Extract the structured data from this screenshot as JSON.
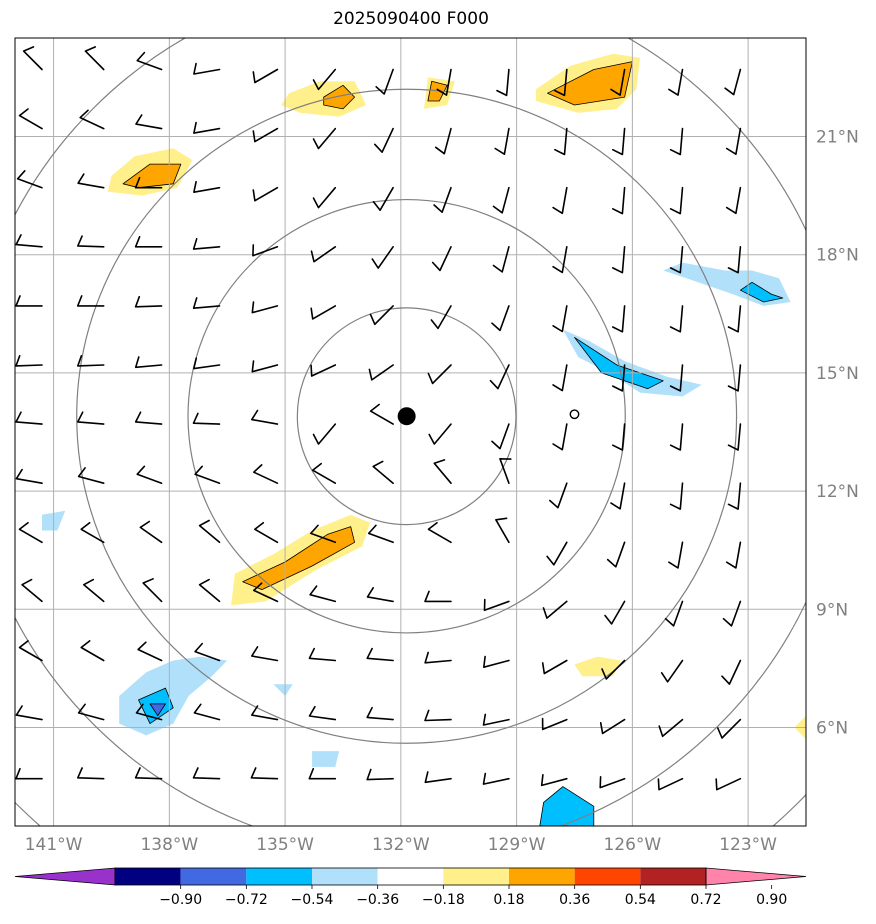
{
  "title": "2025090400 F000",
  "map": {
    "lon_range": [
      -142,
      -121.5
    ],
    "lat_range": [
      3.5,
      23.5
    ],
    "lon_ticks": [
      {
        "value": -141,
        "label": "141°W"
      },
      {
        "value": -138,
        "label": "138°W"
      },
      {
        "value": -135,
        "label": "135°W"
      },
      {
        "value": -132,
        "label": "132°W"
      },
      {
        "value": -129,
        "label": "129°W"
      },
      {
        "value": -126,
        "label": "126°W"
      },
      {
        "value": -123,
        "label": "123°W"
      }
    ],
    "lat_ticks": [
      {
        "value": 21,
        "label": "21°N"
      },
      {
        "value": 18,
        "label": "18°N"
      },
      {
        "value": 15,
        "label": "15°N"
      },
      {
        "value": 12,
        "label": "12°N"
      },
      {
        "value": 9,
        "label": "9°N"
      },
      {
        "value": 6,
        "label": "6°N"
      }
    ],
    "center": {
      "lon": -131.85,
      "lat": 13.9
    },
    "secondary_marker": {
      "lon": -127.5,
      "lat": 13.95
    },
    "range_rings_deg": [
      2.75,
      5.5,
      8.3,
      11.1,
      13.9
    ],
    "grid_color": "#b0b0b0",
    "ring_color": "#808080"
  },
  "colorbar": {
    "colors": [
      "#9932cc",
      "#000080",
      "#4169e1",
      "#00bfff",
      "#b0e0fa",
      "#ffffff",
      "#fff08c",
      "#ffa500",
      "#ff4500",
      "#b22222",
      "#ff83ab"
    ],
    "ticks": [
      "−0.90",
      "−0.72",
      "−0.54",
      "−0.36",
      "−0.18",
      "0.18",
      "0.36",
      "0.54",
      "0.72",
      "0.90"
    ]
  },
  "shaded_regions": [
    {
      "pts": [
        [
          -134.9,
          22.1
        ],
        [
          -134.1,
          22.4
        ],
        [
          -133.2,
          22.4
        ],
        [
          -132.9,
          21.8
        ],
        [
          -133.6,
          21.5
        ],
        [
          -134.6,
          21.6
        ],
        [
          -135.1,
          21.8
        ]
      ],
      "level": "pos1"
    },
    {
      "pts": [
        [
          -134.0,
          22.0
        ],
        [
          -133.5,
          22.3
        ],
        [
          -133.2,
          22.0
        ],
        [
          -133.5,
          21.7
        ],
        [
          -134.0,
          21.8
        ]
      ],
      "level": "pos2"
    },
    {
      "pts": [
        [
          -131.3,
          22.5
        ],
        [
          -130.6,
          22.4
        ],
        [
          -130.8,
          21.8
        ],
        [
          -131.4,
          21.7
        ]
      ],
      "level": "pos1"
    },
    {
      "pts": [
        [
          -131.2,
          22.4
        ],
        [
          -130.8,
          22.3
        ],
        [
          -131.0,
          21.9
        ],
        [
          -131.3,
          21.9
        ]
      ],
      "level": "pos2"
    },
    {
      "pts": [
        [
          -128.5,
          22.2
        ],
        [
          -127.6,
          22.8
        ],
        [
          -126.5,
          23.1
        ],
        [
          -125.8,
          23.0
        ],
        [
          -125.9,
          22.2
        ],
        [
          -126.4,
          21.7
        ],
        [
          -127.4,
          21.6
        ],
        [
          -128.5,
          21.9
        ]
      ],
      "level": "pos1"
    },
    {
      "pts": [
        [
          -128.2,
          22.1
        ],
        [
          -127.0,
          22.7
        ],
        [
          -126.0,
          22.9
        ],
        [
          -126.2,
          22.0
        ],
        [
          -127.5,
          21.8
        ]
      ],
      "level": "pos2"
    },
    {
      "pts": [
        [
          -139.5,
          20.0
        ],
        [
          -138.9,
          20.5
        ],
        [
          -137.9,
          20.7
        ],
        [
          -137.4,
          20.4
        ],
        [
          -137.8,
          19.7
        ],
        [
          -138.7,
          19.5
        ],
        [
          -139.6,
          19.6
        ]
      ],
      "level": "pos1"
    },
    {
      "pts": [
        [
          -139.2,
          19.8
        ],
        [
          -138.5,
          20.3
        ],
        [
          -137.7,
          20.3
        ],
        [
          -137.9,
          19.8
        ],
        [
          -138.8,
          19.7
        ]
      ],
      "level": "pos2"
    },
    {
      "pts": [
        [
          -136.3,
          9.9
        ],
        [
          -135.3,
          10.4
        ],
        [
          -134.3,
          11.0
        ],
        [
          -133.3,
          11.4
        ],
        [
          -132.8,
          11.2
        ],
        [
          -133.0,
          10.6
        ],
        [
          -134.2,
          10.0
        ],
        [
          -135.5,
          9.2
        ],
        [
          -136.4,
          9.1
        ]
      ],
      "level": "pos1"
    },
    {
      "pts": [
        [
          -136.1,
          9.7
        ],
        [
          -135.0,
          10.2
        ],
        [
          -133.9,
          10.9
        ],
        [
          -133.3,
          11.1
        ],
        [
          -133.2,
          10.7
        ],
        [
          -134.3,
          10.1
        ],
        [
          -135.6,
          9.5
        ]
      ],
      "level": "pos2"
    },
    {
      "pts": [
        [
          -127.5,
          7.6
        ],
        [
          -126.9,
          7.8
        ],
        [
          -126.3,
          7.7
        ],
        [
          -126.5,
          7.3
        ],
        [
          -127.3,
          7.3
        ]
      ],
      "level": "pos1"
    },
    {
      "pts": [
        [
          -121.8,
          6.0
        ],
        [
          -121.5,
          6.3
        ],
        [
          -121.5,
          5.7
        ]
      ],
      "level": "pos1"
    },
    {
      "pts": [
        [
          -125.2,
          17.6
        ],
        [
          -124.7,
          17.8
        ],
        [
          -123.6,
          17.6
        ],
        [
          -122.9,
          17.6
        ],
        [
          -122.2,
          17.4
        ],
        [
          -121.9,
          16.8
        ],
        [
          -122.6,
          16.7
        ],
        [
          -123.4,
          17.0
        ],
        [
          -124.6,
          17.4
        ]
      ],
      "level": "neg1"
    },
    {
      "pts": [
        [
          -122.9,
          17.3
        ],
        [
          -122.4,
          17.0
        ],
        [
          -122.1,
          16.9
        ],
        [
          -122.6,
          16.8
        ],
        [
          -123.2,
          17.1
        ]
      ],
      "level": "neg2"
    },
    {
      "pts": [
        [
          -127.8,
          16.1
        ],
        [
          -127.1,
          15.8
        ],
        [
          -126.2,
          15.3
        ],
        [
          -125.1,
          14.9
        ],
        [
          -124.2,
          14.7
        ],
        [
          -124.7,
          14.4
        ],
        [
          -125.8,
          14.5
        ],
        [
          -126.6,
          15.0
        ],
        [
          -127.4,
          15.4
        ]
      ],
      "level": "neg1"
    },
    {
      "pts": [
        [
          -127.5,
          15.9
        ],
        [
          -126.4,
          15.2
        ],
        [
          -125.2,
          14.8
        ],
        [
          -125.6,
          14.6
        ],
        [
          -126.8,
          15.0
        ]
      ],
      "level": "neg2"
    },
    {
      "pts": [
        [
          -141.3,
          11.4
        ],
        [
          -140.7,
          11.5
        ],
        [
          -140.9,
          11.0
        ],
        [
          -141.3,
          11.0
        ]
      ],
      "level": "neg1"
    },
    {
      "pts": [
        [
          -139.3,
          6.8
        ],
        [
          -138.6,
          7.4
        ],
        [
          -137.9,
          7.7
        ],
        [
          -137.2,
          7.8
        ],
        [
          -136.5,
          7.7
        ],
        [
          -136.9,
          7.3
        ],
        [
          -137.5,
          6.8
        ],
        [
          -137.9,
          6.1
        ],
        [
          -138.6,
          5.8
        ],
        [
          -139.3,
          6.1
        ]
      ],
      "level": "neg1"
    },
    {
      "pts": [
        [
          -138.8,
          6.7
        ],
        [
          -138.1,
          7.0
        ],
        [
          -137.9,
          6.5
        ],
        [
          -138.5,
          6.1
        ]
      ],
      "level": "neg2"
    },
    {
      "pts": [
        [
          -138.5,
          6.6
        ],
        [
          -138.1,
          6.6
        ],
        [
          -138.3,
          6.3
        ]
      ],
      "level": "neg3"
    },
    {
      "pts": [
        [
          -135.3,
          7.1
        ],
        [
          -134.8,
          7.1
        ],
        [
          -135.0,
          6.8
        ]
      ],
      "level": "neg1"
    },
    {
      "pts": [
        [
          -134.3,
          5.4
        ],
        [
          -133.6,
          5.4
        ],
        [
          -133.7,
          5.0
        ],
        [
          -134.3,
          5.0
        ]
      ],
      "level": "neg1"
    },
    {
      "pts": [
        [
          -128.3,
          4.1
        ],
        [
          -127.8,
          4.5
        ],
        [
          -127.0,
          4.0
        ],
        [
          -127.0,
          3.5
        ],
        [
          -128.4,
          3.5
        ]
      ],
      "level": "neg2"
    }
  ],
  "barbs": {
    "rows": [
      {
        "lat": 22.7,
        "dirs": [
          315,
          315,
          290,
          260,
          240,
          220,
          200,
          190,
          185,
          185,
          190,
          190,
          195
        ]
      },
      {
        "lat": 21.2,
        "dirs": [
          300,
          295,
          280,
          260,
          240,
          220,
          205,
          195,
          190,
          185,
          185,
          185,
          190
        ]
      },
      {
        "lat": 19.7,
        "dirs": [
          290,
          280,
          270,
          260,
          240,
          220,
          210,
          200,
          195,
          190,
          185,
          185,
          190
        ]
      },
      {
        "lat": 18.2,
        "dirs": [
          275,
          272,
          270,
          265,
          250,
          235,
          215,
          205,
          195,
          190,
          185,
          185,
          185
        ]
      },
      {
        "lat": 16.7,
        "dirs": [
          270,
          270,
          268,
          265,
          255,
          240,
          225,
          210,
          200,
          190,
          185,
          185,
          185
        ]
      },
      {
        "lat": 15.2,
        "dirs": [
          268,
          268,
          265,
          262,
          255,
          245,
          235,
          225,
          205,
          190,
          185,
          185,
          185
        ]
      },
      {
        "lat": 13.7,
        "dirs": [
          275,
          275,
          275,
          272,
          280,
          220,
          300,
          220,
          200,
          190,
          185,
          185,
          185
        ]
      },
      {
        "lat": 12.2,
        "dirs": [
          280,
          285,
          290,
          290,
          295,
          300,
          310,
          320,
          340,
          200,
          190,
          185,
          185
        ]
      },
      {
        "lat": 10.7,
        "dirs": [
          300,
          300,
          305,
          310,
          300,
          290,
          290,
          300,
          330,
          210,
          200,
          190,
          190
        ]
      },
      {
        "lat": 9.2,
        "dirs": [
          310,
          310,
          315,
          310,
          295,
          285,
          280,
          270,
          250,
          230,
          210,
          200,
          200
        ]
      },
      {
        "lat": 7.7,
        "dirs": [
          300,
          300,
          295,
          290,
          280,
          275,
          275,
          265,
          255,
          240,
          225,
          215,
          205
        ]
      },
      {
        "lat": 6.2,
        "dirs": [
          280,
          285,
          285,
          285,
          280,
          278,
          275,
          268,
          258,
          248,
          238,
          230,
          225
        ]
      },
      {
        "lat": 4.7,
        "dirs": [
          270,
          272,
          272,
          272,
          272,
          270,
          268,
          262,
          258,
          255,
          250,
          245,
          245
        ]
      }
    ],
    "lons": [
      -141.3,
      -139.7,
      -138.2,
      -136.7,
      -135.2,
      -133.7,
      -132.2,
      -130.7,
      -129.2,
      -127.7,
      -126.2,
      -124.7,
      -123.2
    ]
  }
}
